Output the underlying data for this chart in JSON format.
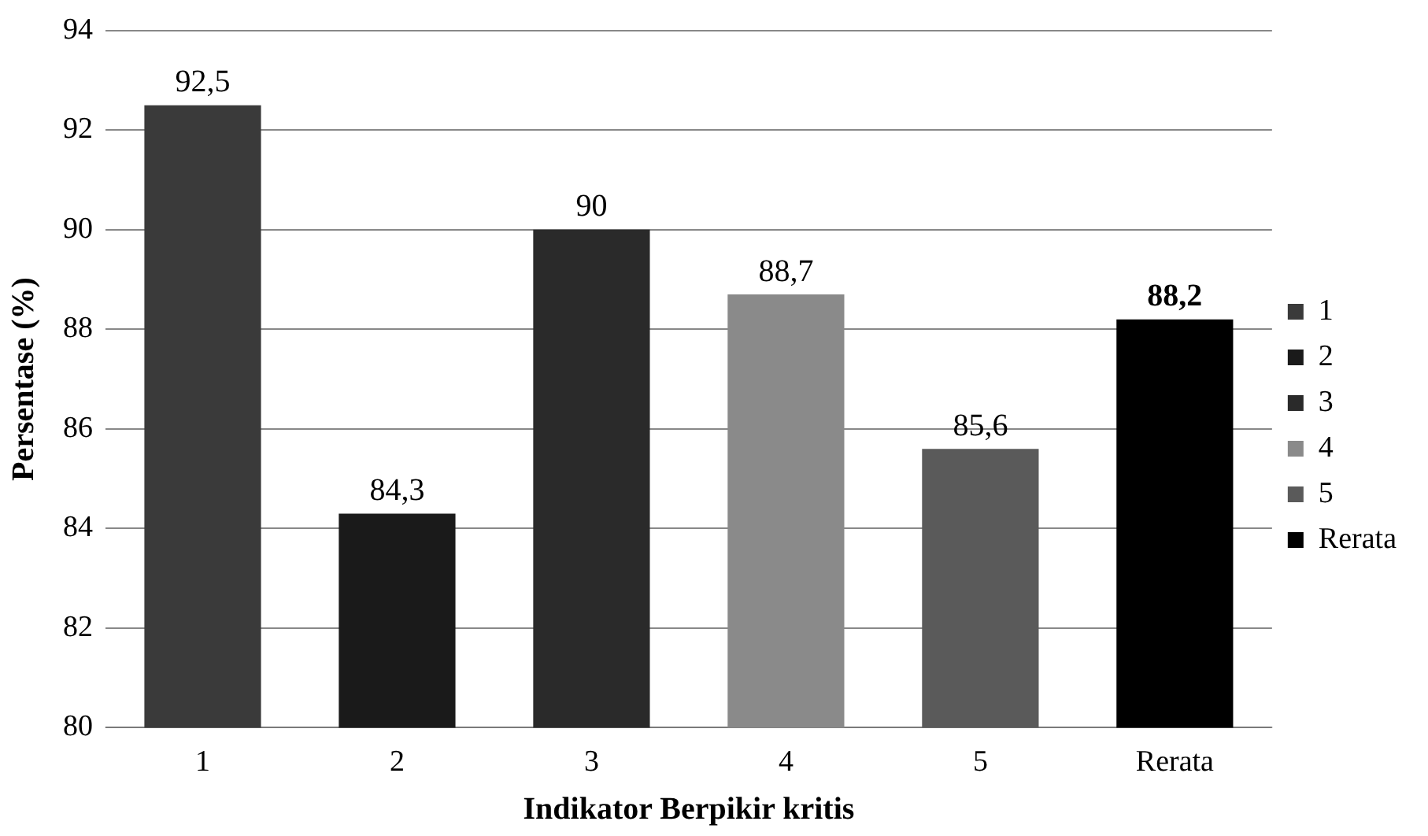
{
  "chart_data": {
    "type": "bar",
    "xlabel": "Indikator Berpikir kritis",
    "ylabel": "Persentase (%)",
    "categories": [
      "1",
      "2",
      "3",
      "4",
      "5",
      "Rerata"
    ],
    "series": [
      {
        "name": "1",
        "color": "#3a3a3a",
        "values": [
          92.5,
          null,
          null,
          null,
          null,
          null
        ],
        "value_labels": [
          "92,5",
          null,
          null,
          null,
          null,
          null
        ]
      },
      {
        "name": "2",
        "color": "#1a1a1a",
        "values": [
          null,
          84.3,
          null,
          null,
          null,
          null
        ],
        "value_labels": [
          null,
          "84,3",
          null,
          null,
          null,
          null
        ]
      },
      {
        "name": "3",
        "color": "#2a2a2a",
        "values": [
          null,
          null,
          90,
          null,
          null,
          null
        ],
        "value_labels": [
          null,
          null,
          "90",
          null,
          null,
          null
        ]
      },
      {
        "name": "4",
        "color": "#8a8a8a",
        "values": [
          null,
          null,
          null,
          88.7,
          null,
          null
        ],
        "value_labels": [
          null,
          null,
          null,
          "88,7",
          null,
          null
        ]
      },
      {
        "name": "5",
        "color": "#5a5a5a",
        "values": [
          null,
          null,
          null,
          null,
          85.6,
          null
        ],
        "value_labels": [
          null,
          null,
          null,
          null,
          "85,6",
          null
        ]
      },
      {
        "name": "Rerata",
        "color": "#000000",
        "values": [
          null,
          null,
          null,
          null,
          null,
          88.2
        ],
        "value_labels": [
          null,
          null,
          null,
          null,
          null,
          "88,2"
        ]
      }
    ],
    "ylim": [
      80,
      94
    ],
    "yticks": [
      80,
      82,
      84,
      86,
      88,
      90,
      92,
      94
    ],
    "grid": "y",
    "legend": "right"
  }
}
